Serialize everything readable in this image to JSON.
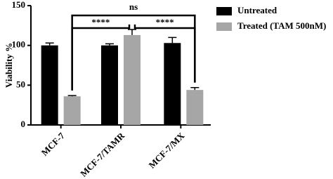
{
  "chart_data": {
    "type": "bar",
    "y_label": "Viability %",
    "categories": [
      "MCF-7",
      "MCF-7/TAMR",
      "MCF-7/MX"
    ],
    "series": [
      {
        "name": "Untreated",
        "color": "#000000",
        "values": [
          100,
          100,
          103
        ],
        "errors": [
          3,
          2,
          7
        ]
      },
      {
        "name": "Treated (TAM 500nM)",
        "color": "#a6a6a6",
        "values": [
          36,
          113,
          44
        ],
        "errors": [
          1,
          7,
          3
        ]
      }
    ],
    "ylim": [
      0,
      150
    ],
    "yticks": [
      0,
      50,
      100,
      150
    ],
    "grid": false,
    "legend": "upper right",
    "annotations": [
      "****",
      "ns",
      "****"
    ]
  }
}
